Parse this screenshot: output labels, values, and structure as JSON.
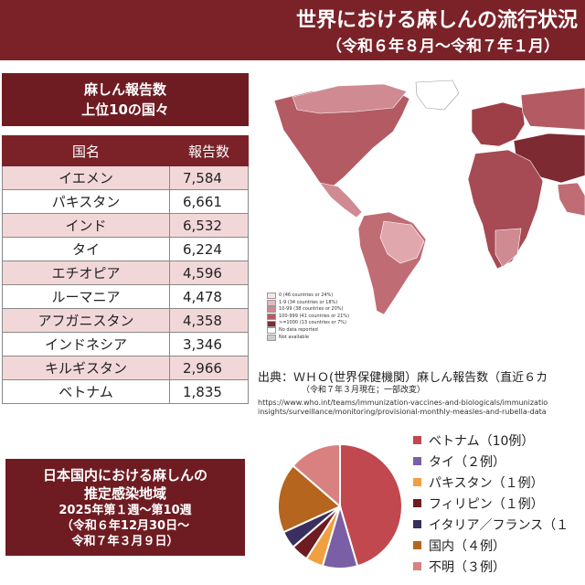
{
  "header": {
    "title": "世界における麻しんの流行状況",
    "subtitle": "（令和６年８月～令和７年１月）"
  },
  "ranking": {
    "title_line1": "麻しん報告数",
    "title_line2": "上位10の国々",
    "col_country": "国名",
    "col_count": "報告数",
    "rows": [
      {
        "country": "イエメン",
        "count": "7,584"
      },
      {
        "country": "パキスタン",
        "count": "6,661"
      },
      {
        "country": "インド",
        "count": "6,532"
      },
      {
        "country": "タイ",
        "count": "6,224"
      },
      {
        "country": "エチオピア",
        "count": "4,596"
      },
      {
        "country": "ルーマニア",
        "count": "4,478"
      },
      {
        "country": "アフガニスタン",
        "count": "4,358"
      },
      {
        "country": "インドネシア",
        "count": "3,346"
      },
      {
        "country": "キルギスタン",
        "count": "2,966"
      },
      {
        "country": "ベトナム",
        "count": "1,835"
      }
    ]
  },
  "japan_box": {
    "line1": "日本国内における麻しんの",
    "line2": "推定感染地域",
    "line3": "2025年第１週～第10週",
    "line4": "（令和６年12月30日～",
    "line5": "令和７年３月９日）"
  },
  "map_legend": [
    {
      "label": "0 (46 countries or 24%)",
      "color": "#f7e6e7"
    },
    {
      "label": "1-9 (34 countries or 18%)",
      "color": "#e7b9bd"
    },
    {
      "label": "10-99 (38 countries or 20%)",
      "color": "#d08a91"
    },
    {
      "label": "100-999 (41 countries or 21%)",
      "color": "#b35a63"
    },
    {
      "label": ">=1000 (13 countries or 7%)",
      "color": "#7e2a32"
    },
    {
      "label": "No data reported",
      "color": "#ffffff"
    },
    {
      "label": "Not available",
      "color": "#cccccc"
    }
  ],
  "source": {
    "line1": "出典：ＷＨＯ(世界保健機関）麻しん報告数（直近６カ",
    "line2": "（令和７年３月現在；一部改変）",
    "url1": "https://www.who.int/teams/immunization-vaccines-and-biologicals/immunizatio",
    "url2": "insights/surveillance/monitoring/provisional-monthly-measles-and-rubella-data"
  },
  "chart_data": {
    "type": "pie",
    "title": "",
    "series": [
      {
        "name": "ベトナム（10例）",
        "value": 10,
        "color": "#c0484e"
      },
      {
        "name": "タイ（２例）",
        "value": 2,
        "color": "#7a5fa6"
      },
      {
        "name": "パキスタン（１例）",
        "value": 1,
        "color": "#f0a040"
      },
      {
        "name": "フィリピン（１例）",
        "value": 1,
        "color": "#6e1c22"
      },
      {
        "name": "イタリア／フランス（１",
        "value": 1,
        "color": "#3a2f5e"
      },
      {
        "name": "国内（４例）",
        "value": 4,
        "color": "#b5651d"
      },
      {
        "name": "不明（３例）",
        "value": 3,
        "color": "#d98080"
      }
    ]
  }
}
